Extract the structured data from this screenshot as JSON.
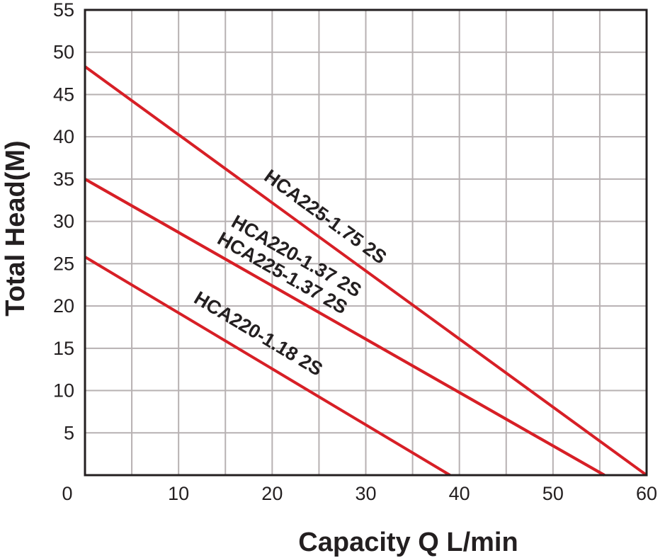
{
  "chart_data": {
    "type": "line",
    "title": "",
    "xlabel": "Capacity Q L/min",
    "ylabel": "Total Head(M)",
    "xlim": [
      0,
      60
    ],
    "ylim": [
      0,
      55
    ],
    "x_ticks": [
      0,
      10,
      20,
      30,
      40,
      50,
      60
    ],
    "y_ticks": [
      5,
      10,
      15,
      20,
      25,
      30,
      35,
      40,
      45,
      50,
      55
    ],
    "x_tick_labels": [
      "0",
      "10",
      "20",
      "30",
      "40",
      "50",
      "60"
    ],
    "y_tick_labels": [
      "5",
      "10",
      "15",
      "20",
      "25",
      "30",
      "35",
      "40",
      "45",
      "50",
      "55"
    ],
    "grid": true,
    "grid_step_x": 5,
    "grid_step_y": 5,
    "legend": "inline labels along lines",
    "line_color": "#d71f26",
    "grid_color": "#b7b1b2",
    "series": [
      {
        "name": "HCA225-1.75 2S",
        "x": [
          0,
          60
        ],
        "y": [
          48.3,
          0
        ]
      },
      {
        "name": "HCA220-1.37 2S",
        "x": [
          0,
          55.5
        ],
        "y": [
          35,
          0
        ]
      },
      {
        "name": "HCA225-1.37 2S",
        "x": [
          0,
          55.5
        ],
        "y": [
          35,
          0
        ]
      },
      {
        "name": "HCA220-1.18 2S",
        "x": [
          0,
          39
        ],
        "y": [
          25.8,
          0
        ]
      }
    ],
    "label_positions_data": [
      {
        "series": 0,
        "x": 19,
        "y": 35
      },
      {
        "series": 1,
        "x": 15.5,
        "y": 29.5
      },
      {
        "series": 2,
        "x": 14,
        "y": 27.5
      },
      {
        "series": 3,
        "x": 11.5,
        "y": 20.5
      }
    ]
  }
}
